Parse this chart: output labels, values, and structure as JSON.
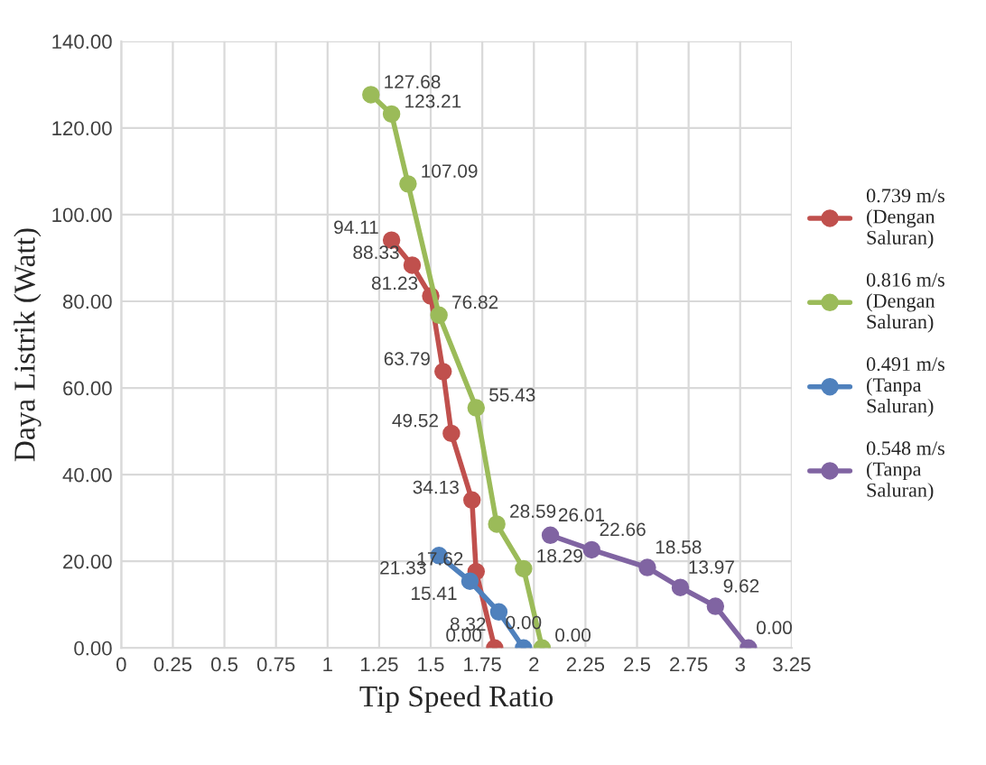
{
  "chart_data": {
    "type": "line",
    "xlabel": "Tip Speed Ratio",
    "ylabel": "Daya Listrik (Watt)",
    "xlim": [
      0,
      3.25
    ],
    "xticks": [
      0,
      0.25,
      0.5,
      0.75,
      1,
      1.25,
      1.5,
      1.75,
      2,
      2.25,
      2.5,
      2.75,
      3,
      3.25
    ],
    "ylim": [
      0,
      140
    ],
    "yticks": [
      {
        "value": 0,
        "label": "0.00"
      },
      {
        "value": 20,
        "label": "20.00"
      },
      {
        "value": 40,
        "label": "40.00"
      },
      {
        "value": 60,
        "label": "60.00"
      },
      {
        "value": 80,
        "label": "80.00"
      },
      {
        "value": 100,
        "label": "100.00"
      },
      {
        "value": 120,
        "label": "120.00"
      },
      {
        "value": 140,
        "label": "140.00"
      }
    ],
    "grid": true,
    "legend": "right",
    "marker": "circle",
    "line_style": "solid",
    "series": [
      {
        "name": "0.739 m/s\n(Dengan\nSaluran)",
        "color": "#c0504d",
        "x": [
          1.31,
          1.41,
          1.5,
          1.56,
          1.6,
          1.7,
          1.72,
          1.81
        ],
        "values": [
          94.11,
          88.33,
          81.23,
          63.79,
          49.52,
          34.13,
          17.62,
          0
        ],
        "value_labels": [
          "94.11",
          "88.33",
          "81.23",
          "63.79",
          "49.52",
          "34.13",
          "17.62",
          "0.00"
        ]
      },
      {
        "name": "0.816 m/s\n(Dengan\nSaluran)",
        "color": "#9bbb59",
        "x": [
          1.21,
          1.31,
          1.39,
          1.54,
          1.72,
          1.82,
          1.95,
          2.04
        ],
        "values": [
          127.68,
          123.21,
          107.09,
          76.82,
          55.43,
          28.59,
          18.29,
          0
        ],
        "value_labels": [
          "127.68",
          "123.21",
          "107.09",
          "76.82",
          "55.43",
          "28.59",
          "18.29",
          "0.00"
        ]
      },
      {
        "name": "0.491 m/s\n(Tanpa\nSaluran)",
        "color": "#4f81bd",
        "x": [
          1.54,
          1.69,
          1.83,
          1.95
        ],
        "values": [
          21.33,
          15.41,
          8.32,
          0
        ],
        "value_labels": [
          "21.33",
          "15.41",
          "8.32",
          "0.00"
        ]
      },
      {
        "name": "0.548 m/s\n(Tanpa\nSaluran)",
        "color": "#8064a2",
        "x": [
          2.08,
          2.28,
          2.55,
          2.71,
          2.88,
          3.04
        ],
        "values": [
          26.01,
          22.66,
          18.58,
          13.97,
          9.62,
          0
        ],
        "value_labels": [
          "26.01",
          "22.66",
          "18.58",
          "13.97",
          "9.62",
          "0.00"
        ]
      }
    ]
  }
}
